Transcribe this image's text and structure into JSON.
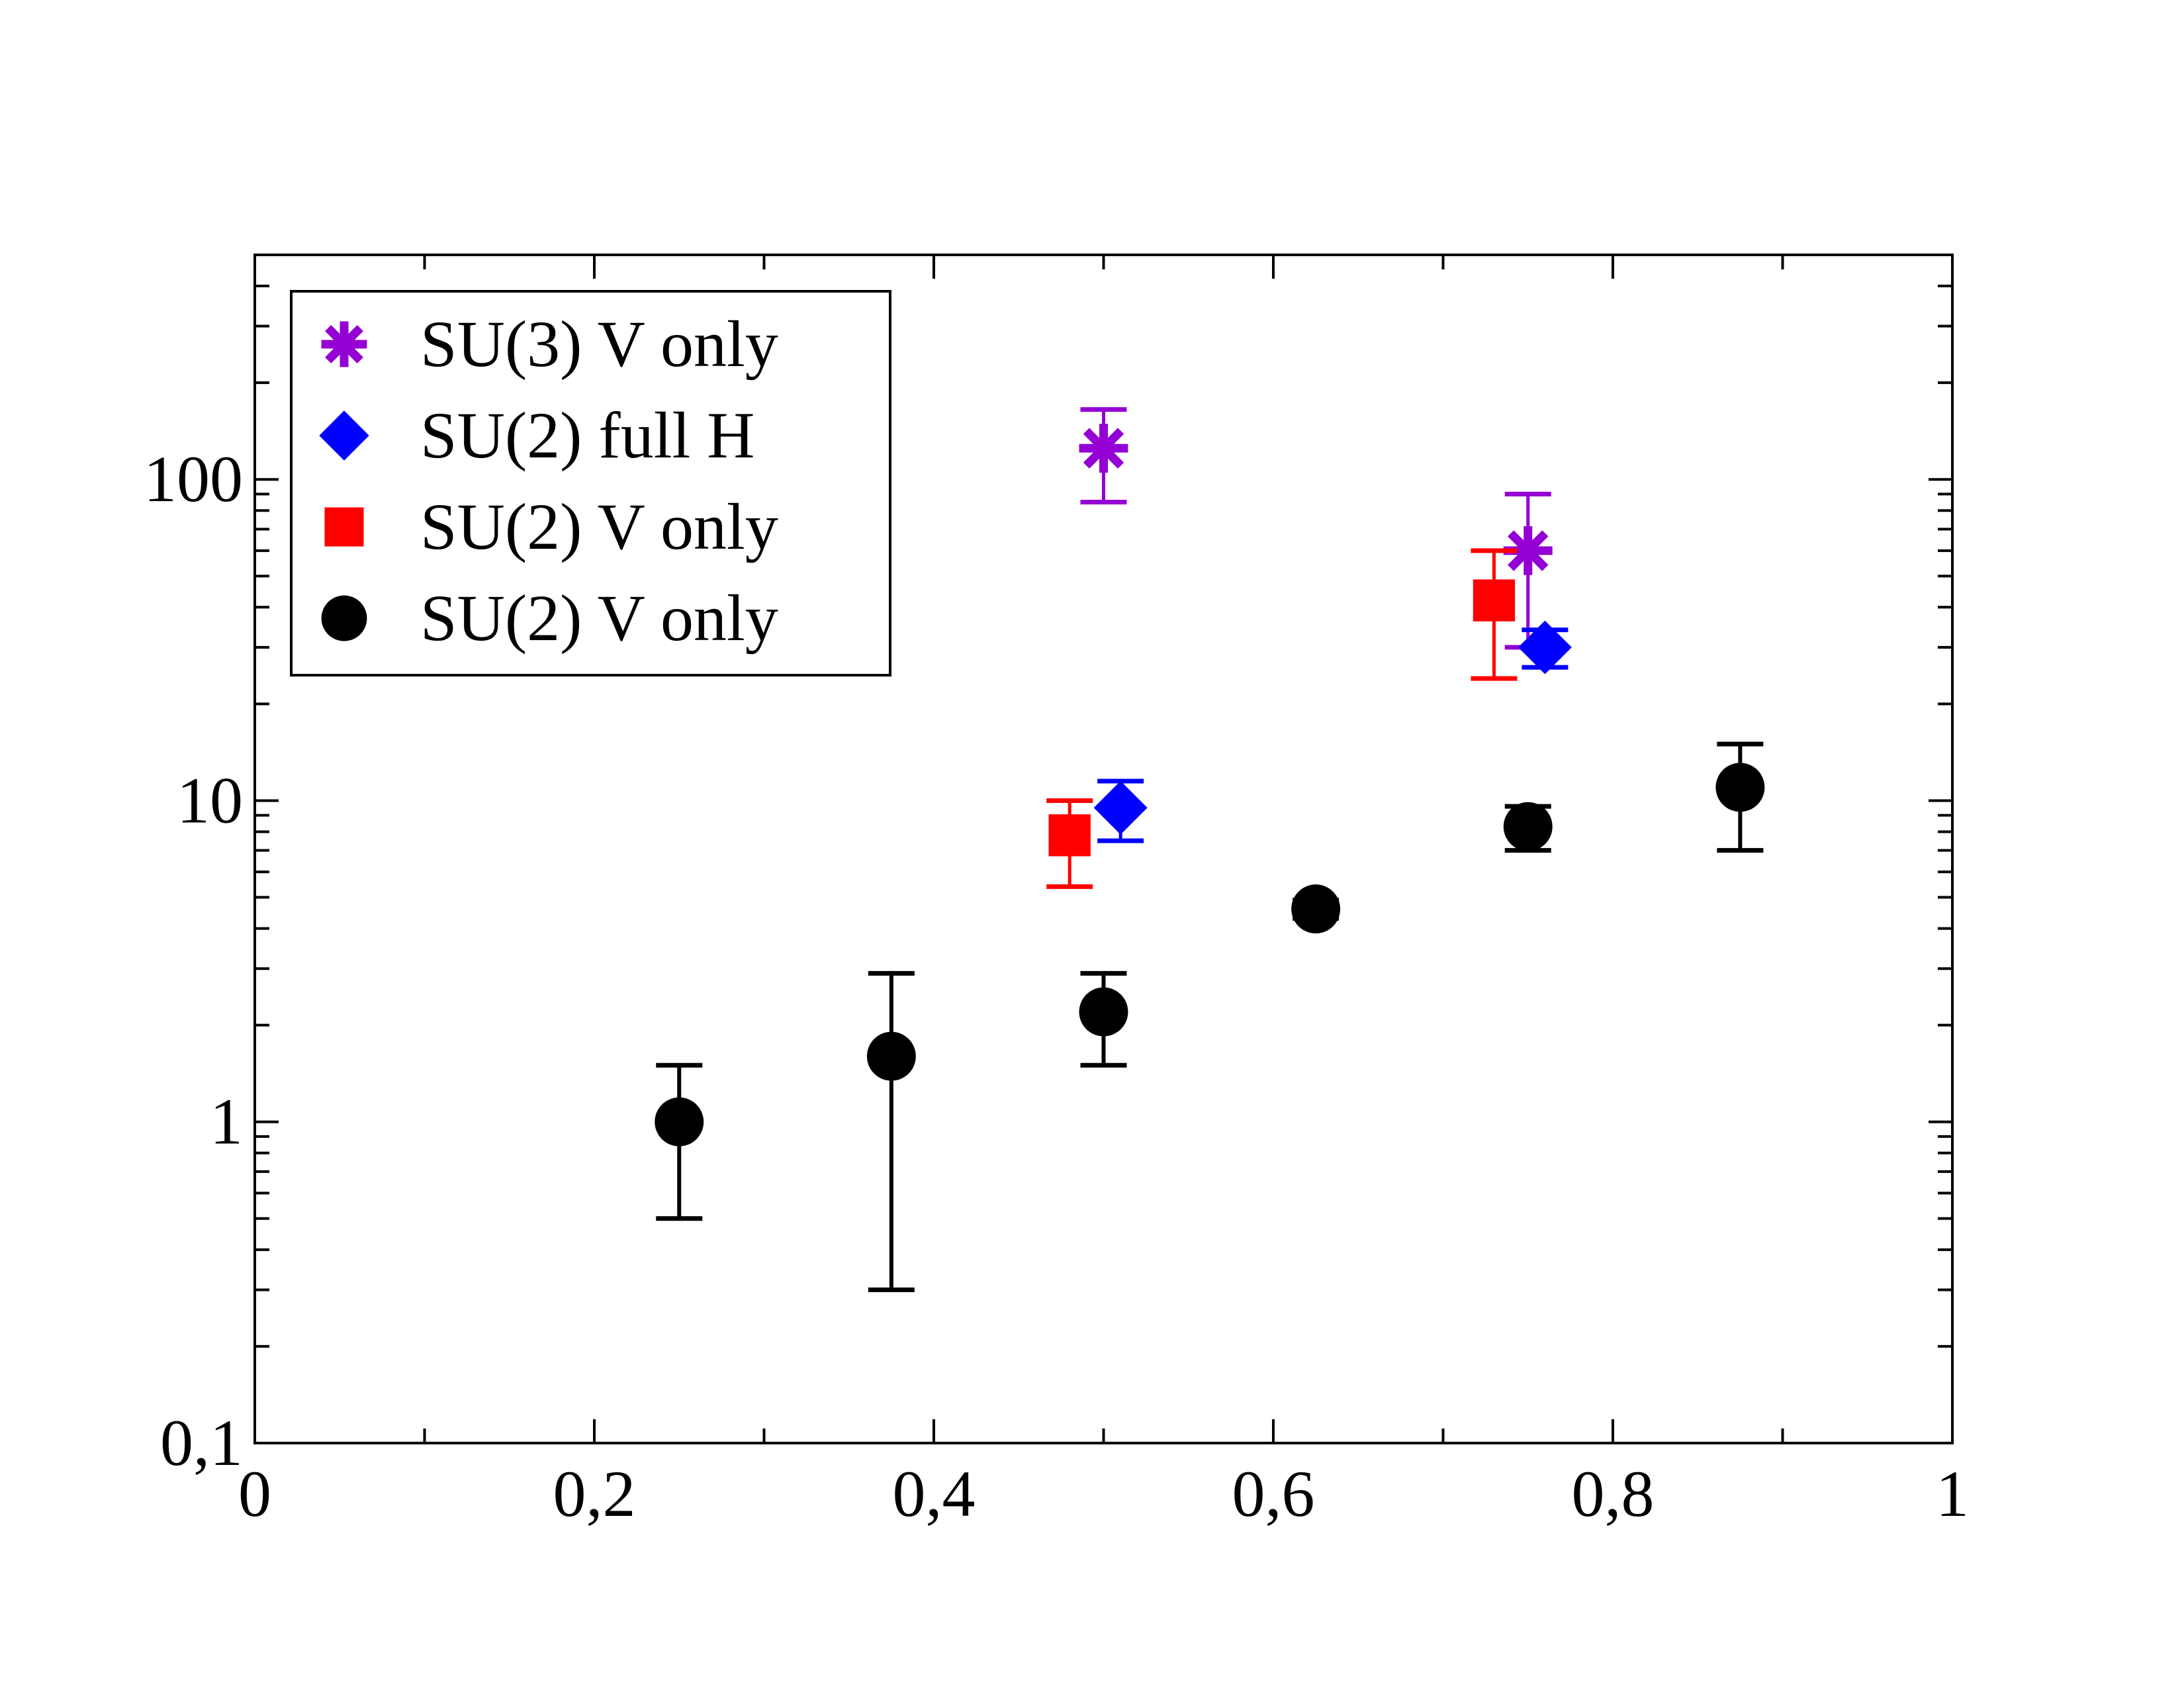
{
  "chart_data": {
    "type": "scatter",
    "title": "",
    "xlabel": "",
    "ylabel": "",
    "xlim": [
      0,
      1
    ],
    "ylim": [
      0.1,
      500
    ],
    "yscale": "log",
    "grid": false,
    "legend_position": "top-left",
    "x_ticks": [
      {
        "value": 0,
        "label": "0"
      },
      {
        "value": 0.2,
        "label": "0,2"
      },
      {
        "value": 0.4,
        "label": "0,4"
      },
      {
        "value": 0.6,
        "label": "0,6"
      },
      {
        "value": 0.8,
        "label": "0,8"
      },
      {
        "value": 1,
        "label": "1"
      }
    ],
    "x_minor_ticks": [
      0.1,
      0.3,
      0.5,
      0.7,
      0.9
    ],
    "y_ticks": [
      {
        "value": 0.1,
        "label": "0,1"
      },
      {
        "value": 1,
        "label": "1"
      },
      {
        "value": 10,
        "label": "10"
      },
      {
        "value": 100,
        "label": "100"
      }
    ],
    "series": [
      {
        "name": "SU(3) V only",
        "marker": "asterisk",
        "color": "#9400D3",
        "points": [
          {
            "x": 0.5,
            "y": 125,
            "ylo": 85,
            "yhi": 165
          },
          {
            "x": 0.75,
            "y": 60,
            "ylo": 30,
            "yhi": 90
          }
        ]
      },
      {
        "name": "SU(2) full H",
        "marker": "diamond",
        "color": "#0000FF",
        "points": [
          {
            "x": 0.51,
            "y": 9.5,
            "ylo": 7.5,
            "yhi": 11.5
          },
          {
            "x": 0.76,
            "y": 30,
            "ylo": 26,
            "yhi": 34
          }
        ]
      },
      {
        "name": "SU(2) V only",
        "marker": "square",
        "color": "#FF0000",
        "points": [
          {
            "x": 0.48,
            "y": 7.8,
            "ylo": 5.4,
            "yhi": 10
          },
          {
            "x": 0.73,
            "y": 42,
            "ylo": 24,
            "yhi": 60
          }
        ]
      },
      {
        "name": "SU(2) V only",
        "marker": "circle",
        "color": "#000000",
        "points": [
          {
            "x": 0.25,
            "y": 1.0,
            "ylo": 0.5,
            "yhi": 1.5
          },
          {
            "x": 0.375,
            "y": 1.6,
            "ylo": 0.3,
            "yhi": 2.9
          },
          {
            "x": 0.5,
            "y": 2.2,
            "ylo": 1.5,
            "yhi": 2.9
          },
          {
            "x": 0.625,
            "y": 4.6,
            "ylo": 4.3,
            "yhi": 4.9
          },
          {
            "x": 0.75,
            "y": 8.3,
            "ylo": 7.0,
            "yhi": 9.6
          },
          {
            "x": 0.875,
            "y": 11,
            "ylo": 7.0,
            "yhi": 15
          }
        ]
      }
    ]
  }
}
